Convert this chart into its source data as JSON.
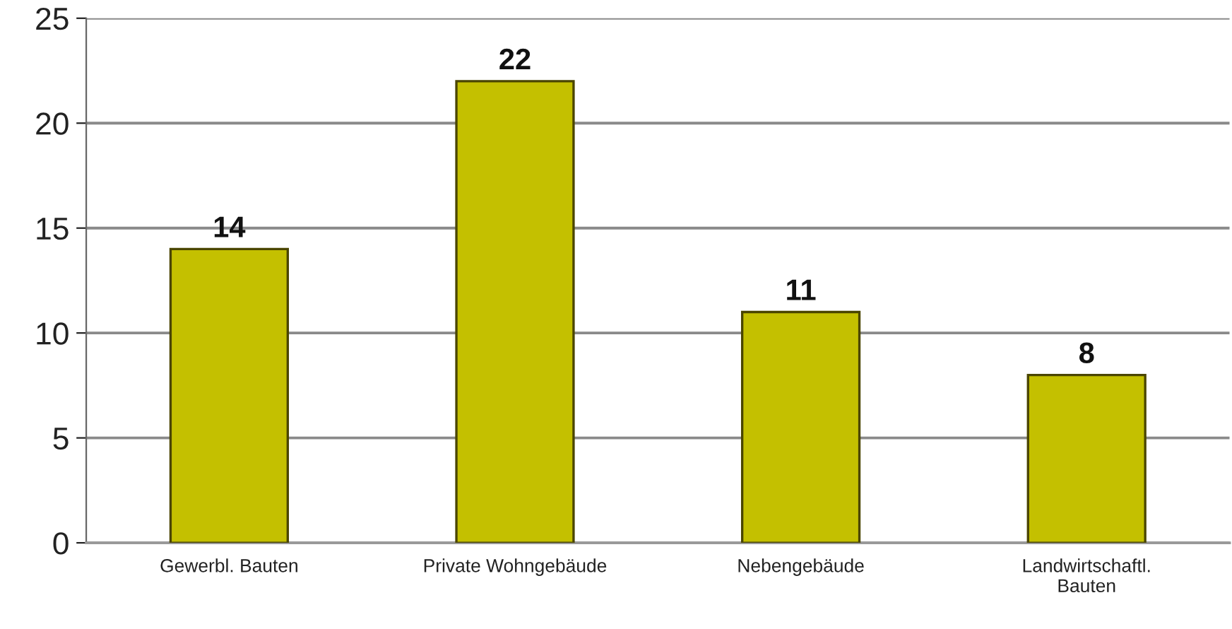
{
  "chart_data": {
    "type": "bar",
    "categories": [
      "Gewerbl. Bauten",
      "Private Wohngebäude",
      "Nebengebäude",
      "Landwirtschaftl.\nBauten"
    ],
    "values": [
      14,
      22,
      11,
      8
    ],
    "color": "#c4c000",
    "ylim": [
      0,
      25
    ],
    "yticks": [
      0,
      5,
      10,
      15,
      20,
      25
    ],
    "grid": "y",
    "data_labels": true
  }
}
